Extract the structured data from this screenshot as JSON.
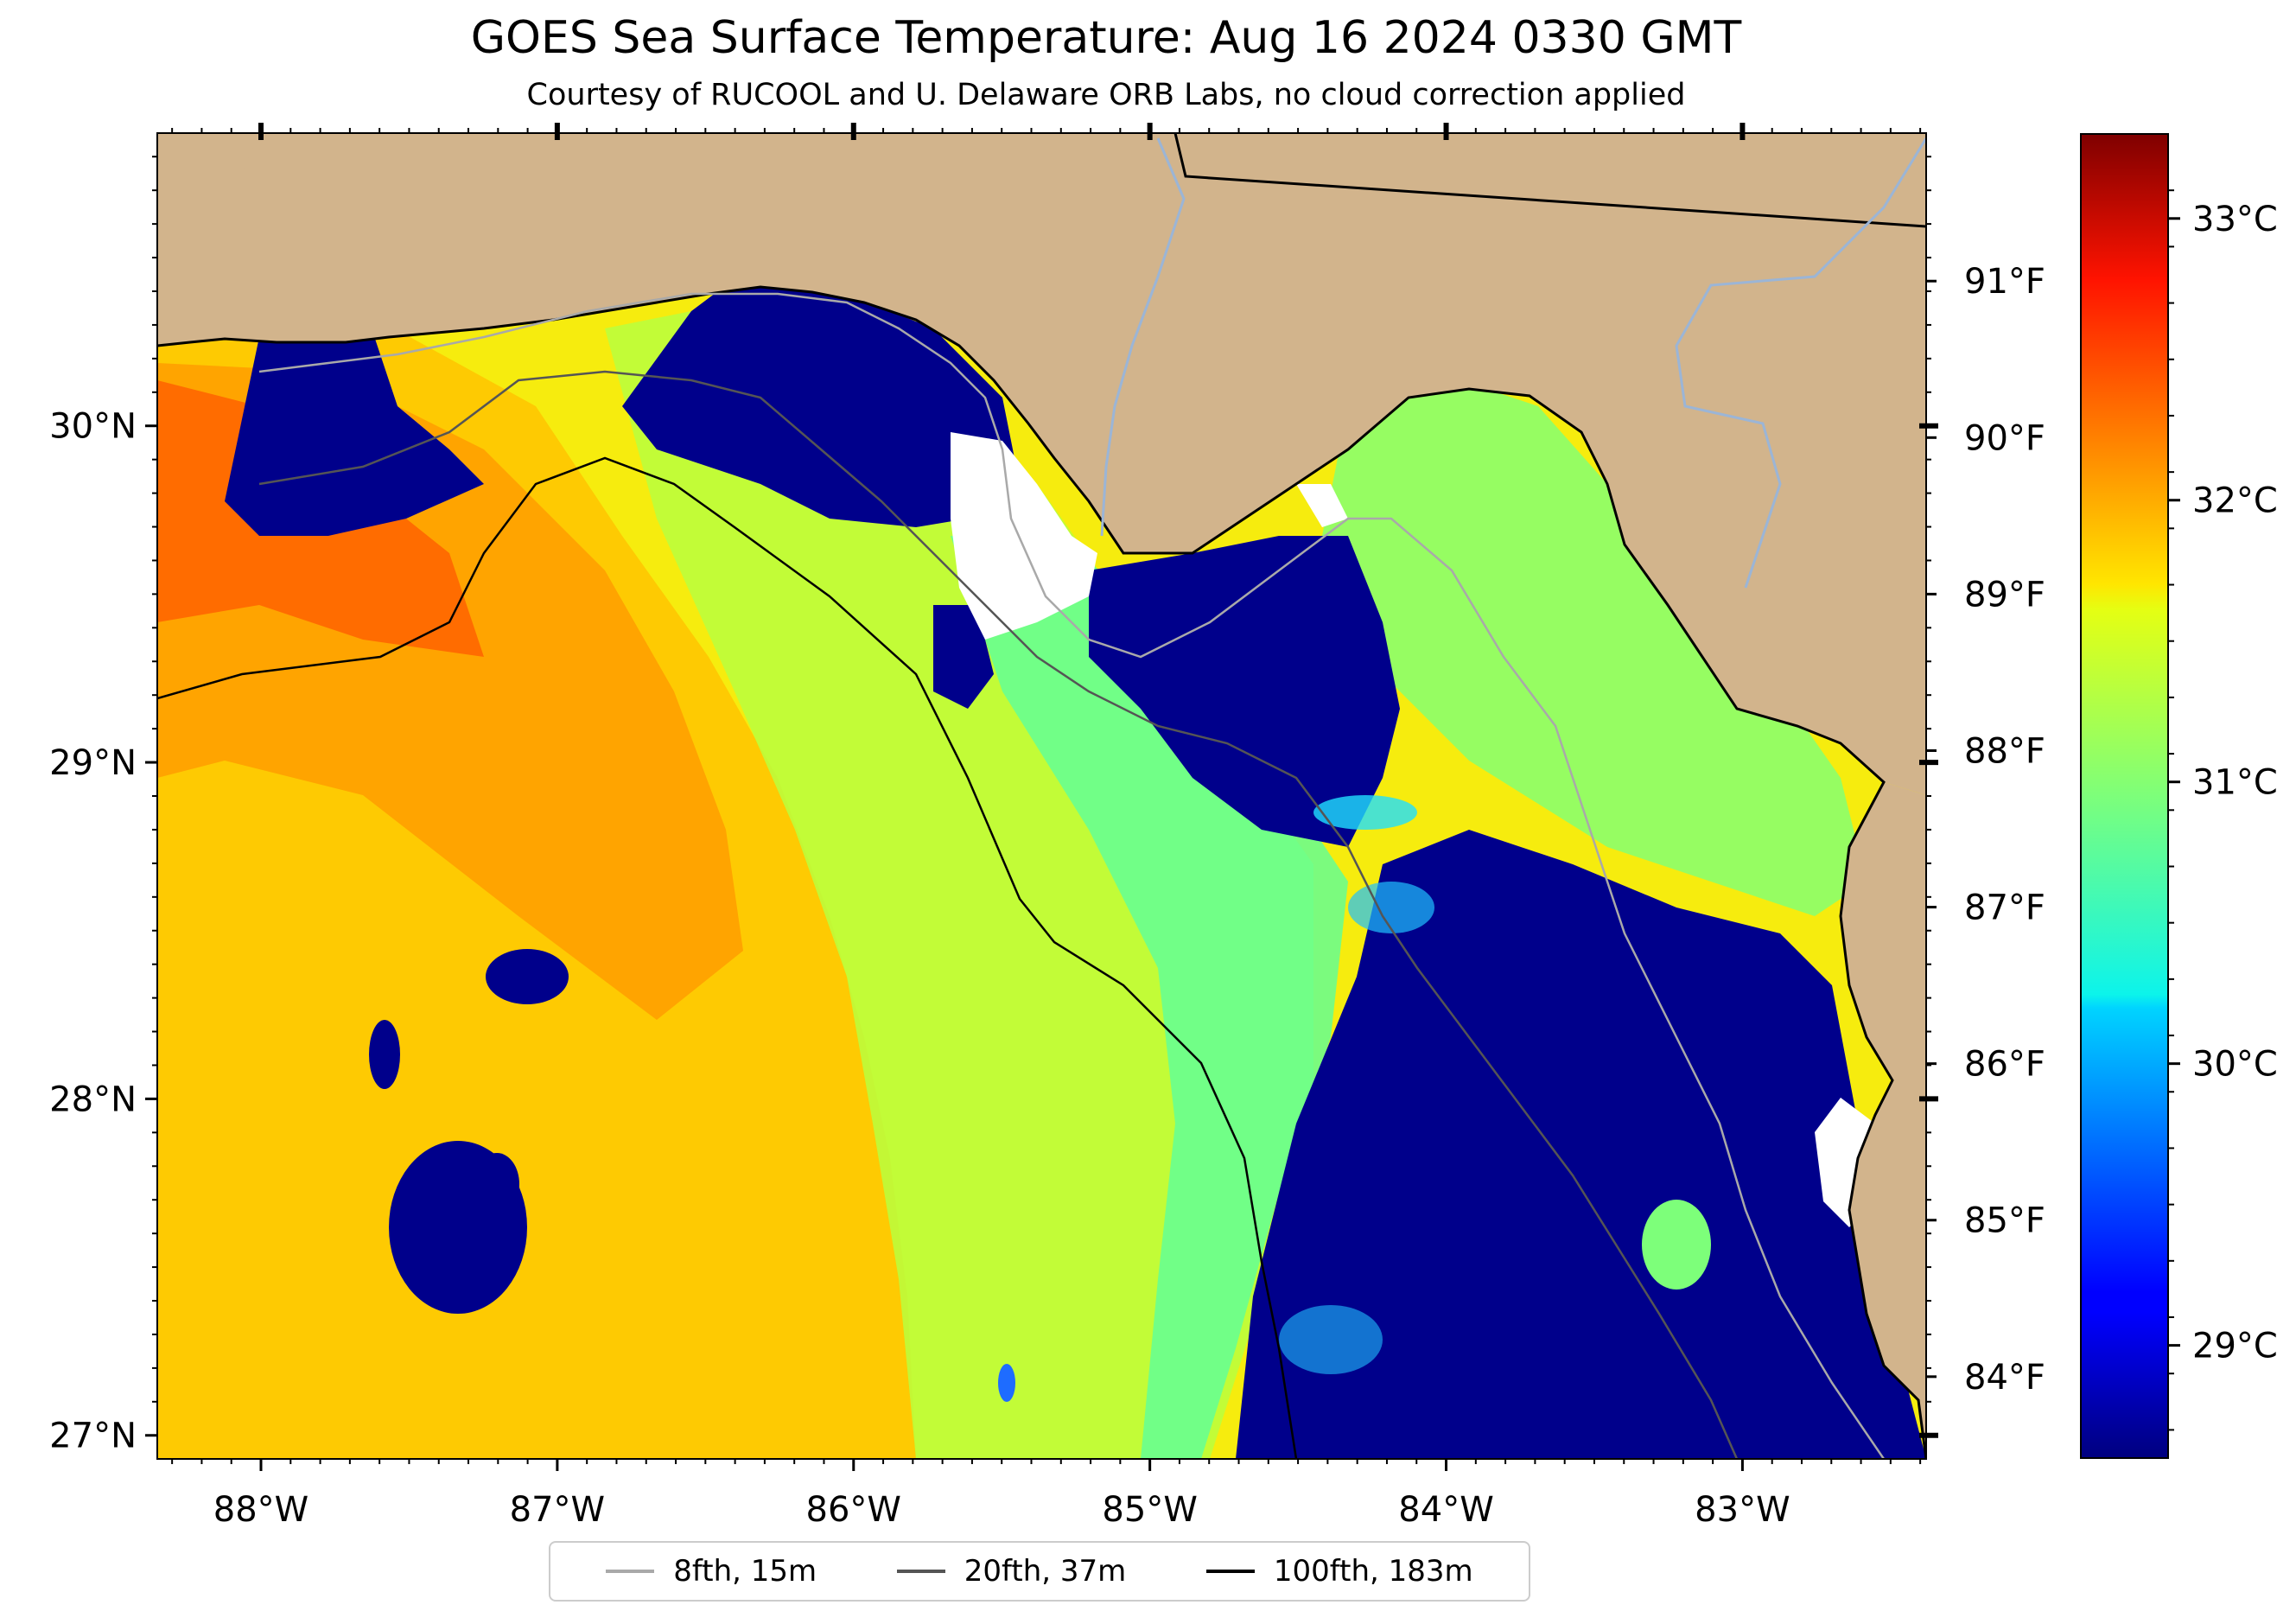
{
  "title": "GOES Sea Surface Temperature: Aug 16 2024 0330 GMT",
  "subtitle": "Courtesy of RUCOOL and U. Delaware ORB Labs, no cloud correction applied",
  "map": {
    "extent": {
      "lon_min": -88.35,
      "lon_max": -82.38,
      "lat_min": 26.93,
      "lat_max": 30.87
    },
    "lon_ticks": [
      {
        "value": -88,
        "label": "88°W"
      },
      {
        "value": -87,
        "label": "87°W"
      },
      {
        "value": -86,
        "label": "86°W"
      },
      {
        "value": -85,
        "label": "85°W"
      },
      {
        "value": -84,
        "label": "84°W"
      },
      {
        "value": -83,
        "label": "83°W"
      }
    ],
    "lat_ticks": [
      {
        "value": 30,
        "label": "30°N"
      },
      {
        "value": 29,
        "label": "29°N"
      },
      {
        "value": 28,
        "label": "28°N"
      },
      {
        "value": 27,
        "label": "27°N"
      }
    ],
    "colors": {
      "land": "#d2b48c",
      "no_data": "#ffffff",
      "coastline": "#000000",
      "state_border": "#000000",
      "rivers": "#9bb5d6"
    }
  },
  "colorbar": {
    "colormap": "jet",
    "range_c": [
      28.6,
      33.3
    ],
    "celsius_ticks": [
      {
        "value": 29,
        "label": "29°C"
      },
      {
        "value": 30,
        "label": "30°C"
      },
      {
        "value": 31,
        "label": "31°C"
      },
      {
        "value": 32,
        "label": "32°C"
      },
      {
        "value": 33,
        "label": "33°C"
      }
    ],
    "fahrenheit_ticks": [
      {
        "value": 84,
        "label": "84°F"
      },
      {
        "value": 85,
        "label": "85°F"
      },
      {
        "value": 86,
        "label": "86°F"
      },
      {
        "value": 87,
        "label": "87°F"
      },
      {
        "value": 88,
        "label": "88°F"
      },
      {
        "value": 89,
        "label": "89°F"
      },
      {
        "value": 90,
        "label": "90°F"
      },
      {
        "value": 91,
        "label": "91°F"
      }
    ]
  },
  "legend": {
    "items": [
      {
        "label": "8fth, 15m",
        "color": "#a9a9a9"
      },
      {
        "label": "20fth, 37m",
        "color": "#555555"
      },
      {
        "label": "100fth, 183m",
        "color": "#000000"
      }
    ]
  }
}
